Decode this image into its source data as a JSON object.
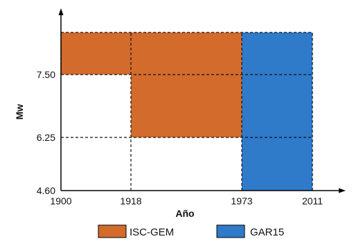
{
  "chart_data": {
    "type": "area",
    "title": "",
    "xlabel": "Año",
    "ylabel": "Mw",
    "x_ticks": [
      1900,
      1918,
      1973,
      2011
    ],
    "y_ticks": [
      4.6,
      6.25,
      7.5
    ],
    "x_tick_labels": [
      "1900",
      "1918",
      "1973",
      "2011"
    ],
    "y_tick_labels": [
      "4.60",
      "6.25",
      "7.50"
    ],
    "ylim": [
      4.6,
      8.6
    ],
    "series": [
      {
        "name": "ISC-GEM",
        "color": "#d26b2c",
        "regions": [
          {
            "x": [
              1900,
              1973
            ],
            "y": [
              7.5,
              8.6
            ]
          },
          {
            "x": [
              1918,
              1973
            ],
            "y": [
              6.25,
              7.5
            ]
          }
        ]
      },
      {
        "name": "GAR15",
        "color": "#2f7ac9",
        "regions": [
          {
            "x": [
              1973,
              2011
            ],
            "y": [
              4.6,
              8.6
            ]
          }
        ]
      }
    ],
    "legend": {
      "placement": "bottom",
      "entries": [
        "ISC-GEM",
        "GAR15"
      ]
    },
    "grid": "dashed lines at region boundaries"
  }
}
